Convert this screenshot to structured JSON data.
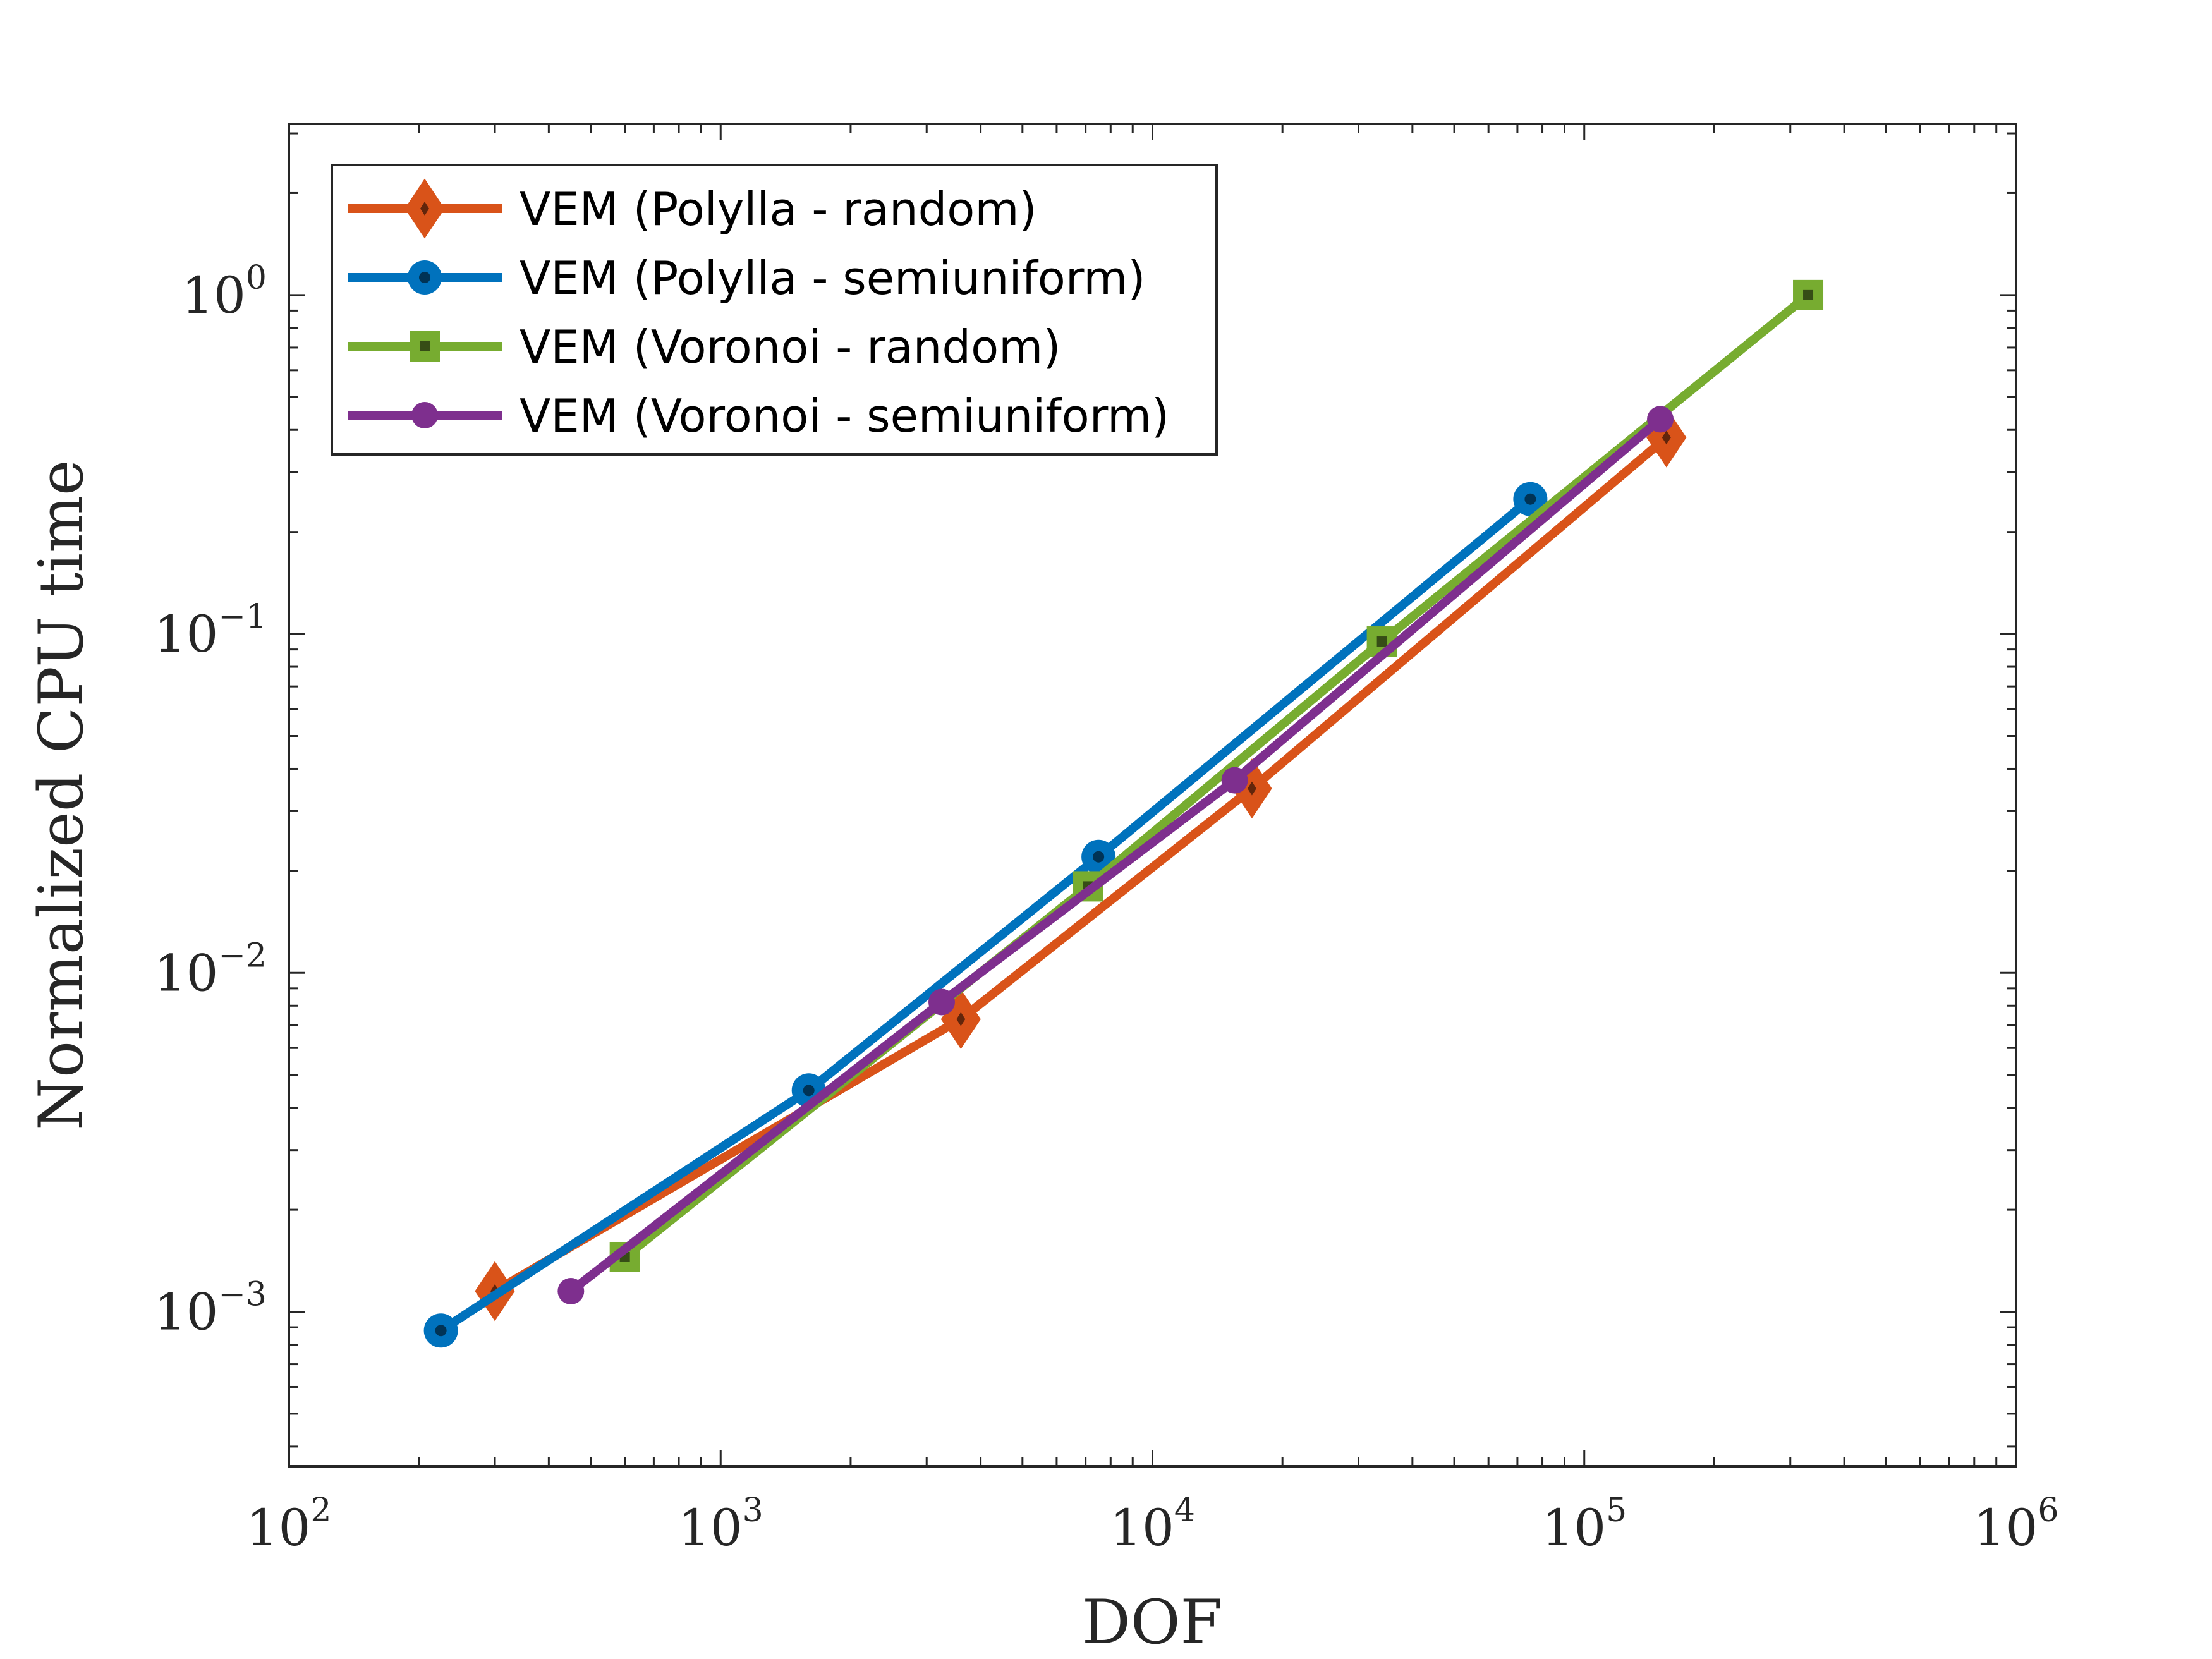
{
  "chart_data": {
    "type": "line",
    "xlabel": "DOF",
    "ylabel": "Normalized CPU time",
    "xscale": "log",
    "yscale": "log",
    "xlim": [
      100,
      1000000
    ],
    "ylim": [
      0.00035,
      3.2
    ],
    "grid": false,
    "legend_position": "top-left",
    "x_ticks": [
      {
        "base": "10",
        "exp": "2",
        "value": 100
      },
      {
        "base": "10",
        "exp": "3",
        "value": 1000
      },
      {
        "base": "10",
        "exp": "4",
        "value": 10000
      },
      {
        "base": "10",
        "exp": "5",
        "value": 100000
      },
      {
        "base": "10",
        "exp": "6",
        "value": 1000000
      }
    ],
    "y_ticks": [
      {
        "base": "10",
        "exp": "−3",
        "value": 0.001
      },
      {
        "base": "10",
        "exp": "−2",
        "value": 0.01
      },
      {
        "base": "10",
        "exp": "−1",
        "value": 0.1
      },
      {
        "base": "10",
        "exp": "0",
        "value": 1
      }
    ],
    "series": [
      {
        "name": "VEM (Polylla - random)",
        "color": "#D95319",
        "marker": "diamond",
        "x": [
          300,
          3600,
          17000,
          155000
        ],
        "y": [
          0.00115,
          0.0073,
          0.035,
          0.38
        ]
      },
      {
        "name": "VEM (Polylla - semiuniform)",
        "color": "#0072BD",
        "marker": "circle",
        "x": [
          225,
          1600,
          7500,
          75000
        ],
        "y": [
          0.00088,
          0.0045,
          0.022,
          0.25
        ]
      },
      {
        "name": "VEM (Voronoi - random)",
        "color": "#77AC30",
        "marker": "square",
        "x": [
          600,
          7100,
          34000,
          330000
        ],
        "y": [
          0.00145,
          0.018,
          0.095,
          1.0
        ]
      },
      {
        "name": "VEM (Voronoi - semiuniform)",
        "color": "#7E2F8E",
        "marker": "circle-small",
        "x": [
          450,
          3250,
          15500,
          150000
        ],
        "y": [
          0.00115,
          0.0082,
          0.037,
          0.43
        ]
      }
    ]
  }
}
